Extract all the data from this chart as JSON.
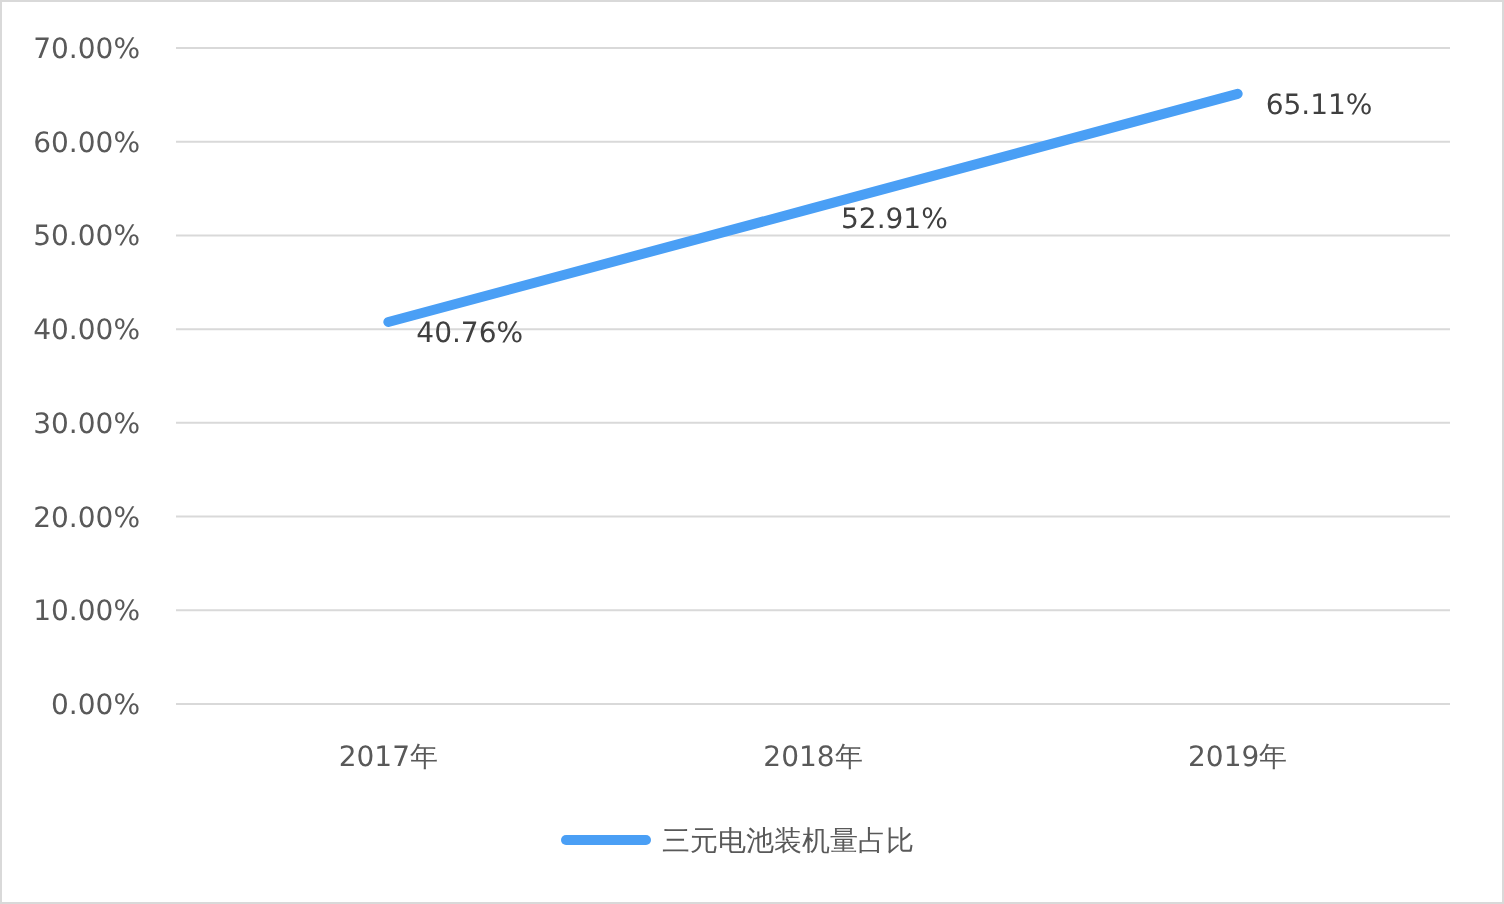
{
  "chart_data": {
    "type": "line",
    "categories": [
      "2017年",
      "2018年",
      "2019年"
    ],
    "series": [
      {
        "name": "三元电池装机量占比",
        "color": "#4a9ff5",
        "values": [
          40.76,
          52.91,
          65.11
        ],
        "value_labels": [
          "40.76%",
          "52.91%",
          "65.11%"
        ]
      }
    ],
    "ylim": [
      0,
      70
    ],
    "yticks": [
      {
        "value": 0,
        "label": "0.00%"
      },
      {
        "value": 10,
        "label": "10.00%"
      },
      {
        "value": 20,
        "label": "20.00%"
      },
      {
        "value": 30,
        "label": "30.00%"
      },
      {
        "value": 40,
        "label": "40.00%"
      },
      {
        "value": 50,
        "label": "50.00%"
      },
      {
        "value": 60,
        "label": "60.00%"
      },
      {
        "value": 70,
        "label": "70.00%"
      }
    ],
    "grid": "y",
    "legend": "bottom",
    "marker": "none",
    "line_style": "solid"
  }
}
